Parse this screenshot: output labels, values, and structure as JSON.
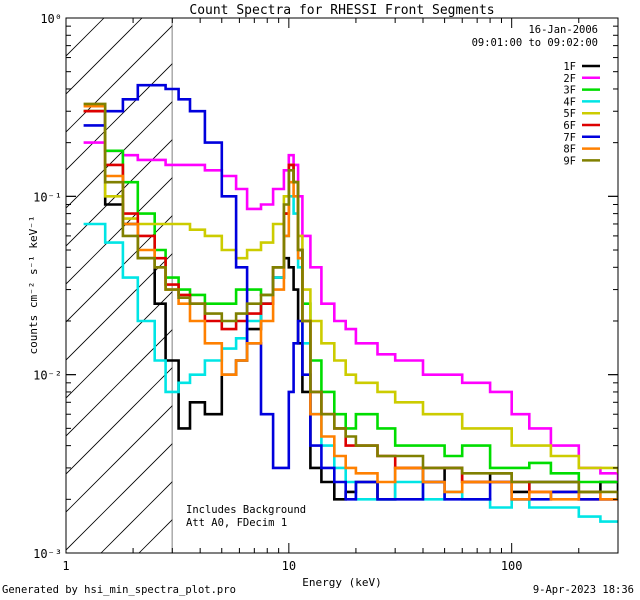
{
  "chart_data": {
    "type": "line",
    "title": "Count Spectra for RHESSI Front Segments",
    "xlabel": "Energy (keV)",
    "ylabel": "counts cm⁻² s⁻¹ keV⁻¹",
    "xscale": "log",
    "yscale": "log",
    "xlim": [
      1,
      300
    ],
    "ylim": [
      0.001,
      1
    ],
    "x_ticks": [
      {
        "v": 1,
        "label": "1"
      },
      {
        "v": 10,
        "label": "10"
      },
      {
        "v": 100,
        "label": "100"
      }
    ],
    "y_ticks": [
      {
        "v": 0.001,
        "label": "10⁻³"
      },
      {
        "v": 0.01,
        "label": "10⁻²"
      },
      {
        "v": 0.1,
        "label": "10⁻¹"
      },
      {
        "v": 1,
        "label": "10⁰"
      }
    ],
    "hatched_region_x": [
      1,
      3
    ],
    "date": "16-Jan-2006",
    "time_range": "09:01:00 to 09:02:00",
    "notes": [
      "Includes Background",
      "Att A0, FDecim 1"
    ],
    "legend_position": "top-right",
    "series": [
      {
        "name": "1F",
        "color": "#000000",
        "x": [
          1.2,
          1.5,
          1.8,
          2.1,
          2.5,
          2.8,
          3.2,
          3.6,
          4.2,
          5.0,
          5.8,
          6.5,
          7.5,
          8.5,
          9.5,
          10.0,
          10.5,
          11.0,
          11.5,
          12.5,
          14,
          16,
          18,
          20,
          25,
          30,
          40,
          50,
          60,
          80,
          100,
          120,
          150,
          200,
          250,
          300
        ],
        "y": [
          0.3,
          0.09,
          0.07,
          0.045,
          0.025,
          0.012,
          0.005,
          0.007,
          0.006,
          0.01,
          0.012,
          0.018,
          0.025,
          0.035,
          0.045,
          0.04,
          0.03,
          0.015,
          0.008,
          0.003,
          0.0025,
          0.002,
          0.0022,
          0.0025,
          0.002,
          0.003,
          0.0025,
          0.003,
          0.0025,
          0.0028,
          0.0022,
          0.0025,
          0.0025,
          0.0022,
          0.0025,
          0.0022
        ]
      },
      {
        "name": "2F",
        "color": "#ff00ff",
        "x": [
          1.2,
          1.5,
          1.8,
          2.1,
          2.5,
          2.8,
          3.2,
          3.6,
          4.2,
          5.0,
          5.8,
          6.5,
          7.5,
          8.5,
          9.5,
          10.0,
          10.5,
          11.0,
          11.5,
          12.5,
          14,
          16,
          18,
          20,
          25,
          30,
          40,
          50,
          60,
          80,
          100,
          120,
          150,
          200,
          250,
          300
        ],
        "y": [
          0.2,
          0.18,
          0.17,
          0.16,
          0.16,
          0.15,
          0.15,
          0.15,
          0.14,
          0.13,
          0.11,
          0.085,
          0.09,
          0.11,
          0.14,
          0.17,
          0.15,
          0.1,
          0.06,
          0.04,
          0.025,
          0.02,
          0.018,
          0.015,
          0.013,
          0.012,
          0.01,
          0.01,
          0.009,
          0.008,
          0.006,
          0.005,
          0.004,
          0.003,
          0.0028,
          0.0025
        ]
      },
      {
        "name": "3F",
        "color": "#00dd00",
        "x": [
          1.2,
          1.5,
          1.8,
          2.1,
          2.5,
          2.8,
          3.2,
          3.6,
          4.2,
          5.0,
          5.8,
          6.5,
          7.5,
          8.5,
          9.5,
          10.0,
          10.5,
          11.0,
          11.5,
          12.5,
          14,
          16,
          18,
          20,
          25,
          30,
          40,
          50,
          60,
          80,
          100,
          120,
          150,
          200,
          250,
          300
        ],
        "y": [
          0.3,
          0.18,
          0.12,
          0.08,
          0.05,
          0.035,
          0.03,
          0.028,
          0.025,
          0.025,
          0.03,
          0.03,
          0.028,
          0.04,
          0.08,
          0.15,
          0.12,
          0.05,
          0.025,
          0.012,
          0.008,
          0.006,
          0.005,
          0.006,
          0.005,
          0.004,
          0.004,
          0.0035,
          0.004,
          0.003,
          0.003,
          0.0032,
          0.0028,
          0.0025,
          0.0025,
          0.0025
        ]
      },
      {
        "name": "4F",
        "color": "#00e5e5",
        "x": [
          1.2,
          1.5,
          1.8,
          2.1,
          2.5,
          2.8,
          3.2,
          3.6,
          4.2,
          5.0,
          5.8,
          6.5,
          7.5,
          8.5,
          9.5,
          10.0,
          10.5,
          11.0,
          11.5,
          12.5,
          14,
          16,
          18,
          20,
          25,
          30,
          40,
          50,
          60,
          80,
          100,
          120,
          150,
          200,
          250,
          300
        ],
        "y": [
          0.07,
          0.055,
          0.035,
          0.02,
          0.012,
          0.008,
          0.009,
          0.01,
          0.012,
          0.014,
          0.016,
          0.02,
          0.025,
          0.035,
          0.06,
          0.1,
          0.08,
          0.04,
          0.015,
          0.006,
          0.004,
          0.003,
          0.0025,
          0.002,
          0.002,
          0.0025,
          0.002,
          0.0022,
          0.002,
          0.0018,
          0.002,
          0.0018,
          0.0018,
          0.0016,
          0.0015,
          0.0015
        ]
      },
      {
        "name": "5F",
        "color": "#cccc00",
        "x": [
          1.2,
          1.5,
          1.8,
          2.1,
          2.5,
          2.8,
          3.2,
          3.6,
          4.2,
          5.0,
          5.8,
          6.5,
          7.5,
          8.5,
          9.5,
          10.0,
          10.5,
          11.0,
          11.5,
          12.5,
          14,
          16,
          18,
          20,
          25,
          30,
          40,
          50,
          60,
          80,
          100,
          120,
          150,
          200,
          250,
          300
        ],
        "y": [
          0.3,
          0.1,
          0.075,
          0.07,
          0.07,
          0.07,
          0.07,
          0.065,
          0.06,
          0.05,
          0.045,
          0.05,
          0.055,
          0.07,
          0.1,
          0.15,
          0.12,
          0.06,
          0.03,
          0.02,
          0.015,
          0.012,
          0.01,
          0.009,
          0.008,
          0.007,
          0.006,
          0.006,
          0.005,
          0.005,
          0.004,
          0.004,
          0.0035,
          0.003,
          0.003,
          0.0028
        ]
      },
      {
        "name": "6F",
        "color": "#dd0000",
        "x": [
          1.2,
          1.5,
          1.8,
          2.1,
          2.5,
          2.8,
          3.2,
          3.6,
          4.2,
          5.0,
          5.8,
          6.5,
          7.5,
          8.5,
          9.5,
          10.0,
          10.5,
          11.0,
          11.5,
          12.5,
          14,
          16,
          18,
          20,
          25,
          30,
          40,
          50,
          60,
          80,
          100,
          120,
          150,
          200,
          250,
          300
        ],
        "y": [
          0.3,
          0.15,
          0.08,
          0.06,
          0.045,
          0.032,
          0.028,
          0.025,
          0.02,
          0.018,
          0.02,
          0.022,
          0.025,
          0.04,
          0.08,
          0.15,
          0.12,
          0.05,
          0.02,
          0.008,
          0.006,
          0.005,
          0.004,
          0.004,
          0.0035,
          0.003,
          0.003,
          0.003,
          0.0025,
          0.0025,
          0.0025,
          0.0022,
          0.0022,
          0.002,
          0.002,
          0.0022
        ]
      },
      {
        "name": "7F",
        "color": "#0000dd",
        "x": [
          1.2,
          1.5,
          1.8,
          2.1,
          2.5,
          2.8,
          3.2,
          3.6,
          4.2,
          5.0,
          5.8,
          6.5,
          7.5,
          8.5,
          9.5,
          10.0,
          10.5,
          11.0,
          11.5,
          12.5,
          14,
          16,
          18,
          20,
          25,
          30,
          40,
          50,
          60,
          80,
          100,
          120,
          150,
          200,
          250,
          300
        ],
        "y": [
          0.25,
          0.3,
          0.35,
          0.42,
          0.42,
          0.4,
          0.35,
          0.3,
          0.2,
          0.1,
          0.04,
          0.015,
          0.006,
          0.003,
          0.003,
          0.008,
          0.015,
          0.02,
          0.01,
          0.004,
          0.003,
          0.0025,
          0.002,
          0.0025,
          0.002,
          0.002,
          0.0025,
          0.002,
          0.002,
          0.0025,
          0.002,
          0.002,
          0.0022,
          0.002,
          0.002,
          0.0022
        ]
      },
      {
        "name": "8F",
        "color": "#ff8000",
        "x": [
          1.2,
          1.5,
          1.8,
          2.1,
          2.5,
          2.8,
          3.2,
          3.6,
          4.2,
          5.0,
          5.8,
          6.5,
          7.5,
          8.5,
          9.5,
          10.0,
          10.5,
          11.0,
          11.5,
          12.5,
          14,
          16,
          18,
          20,
          25,
          30,
          40,
          50,
          60,
          80,
          100,
          120,
          150,
          200,
          250,
          300
        ],
        "y": [
          0.32,
          0.13,
          0.07,
          0.05,
          0.04,
          0.03,
          0.025,
          0.02,
          0.015,
          0.01,
          0.012,
          0.015,
          0.02,
          0.03,
          0.06,
          0.12,
          0.1,
          0.045,
          0.02,
          0.006,
          0.0045,
          0.0035,
          0.003,
          0.0028,
          0.0025,
          0.003,
          0.0025,
          0.0022,
          0.0025,
          0.0025,
          0.002,
          0.0022,
          0.002,
          0.0022,
          0.002,
          0.002
        ]
      },
      {
        "name": "9F",
        "color": "#808000",
        "x": [
          1.2,
          1.5,
          1.8,
          2.1,
          2.5,
          2.8,
          3.2,
          3.6,
          4.2,
          5.0,
          5.8,
          6.5,
          7.5,
          8.5,
          9.5,
          10.0,
          10.5,
          11.0,
          11.5,
          12.5,
          14,
          16,
          18,
          20,
          25,
          30,
          40,
          50,
          60,
          80,
          100,
          120,
          150,
          200,
          250,
          300
        ],
        "y": [
          0.33,
          0.12,
          0.06,
          0.045,
          0.04,
          0.03,
          0.027,
          0.025,
          0.022,
          0.02,
          0.022,
          0.025,
          0.028,
          0.04,
          0.09,
          0.14,
          0.12,
          0.05,
          0.02,
          0.008,
          0.006,
          0.005,
          0.0045,
          0.004,
          0.0035,
          0.0035,
          0.003,
          0.003,
          0.0028,
          0.0028,
          0.0025,
          0.0025,
          0.0025,
          0.0022,
          0.0022,
          0.002
        ]
      }
    ]
  },
  "footer": {
    "generated_by": "Generated by hsi_min_spectra_plot.pro",
    "timestamp": "9-Apr-2023 18:36"
  }
}
